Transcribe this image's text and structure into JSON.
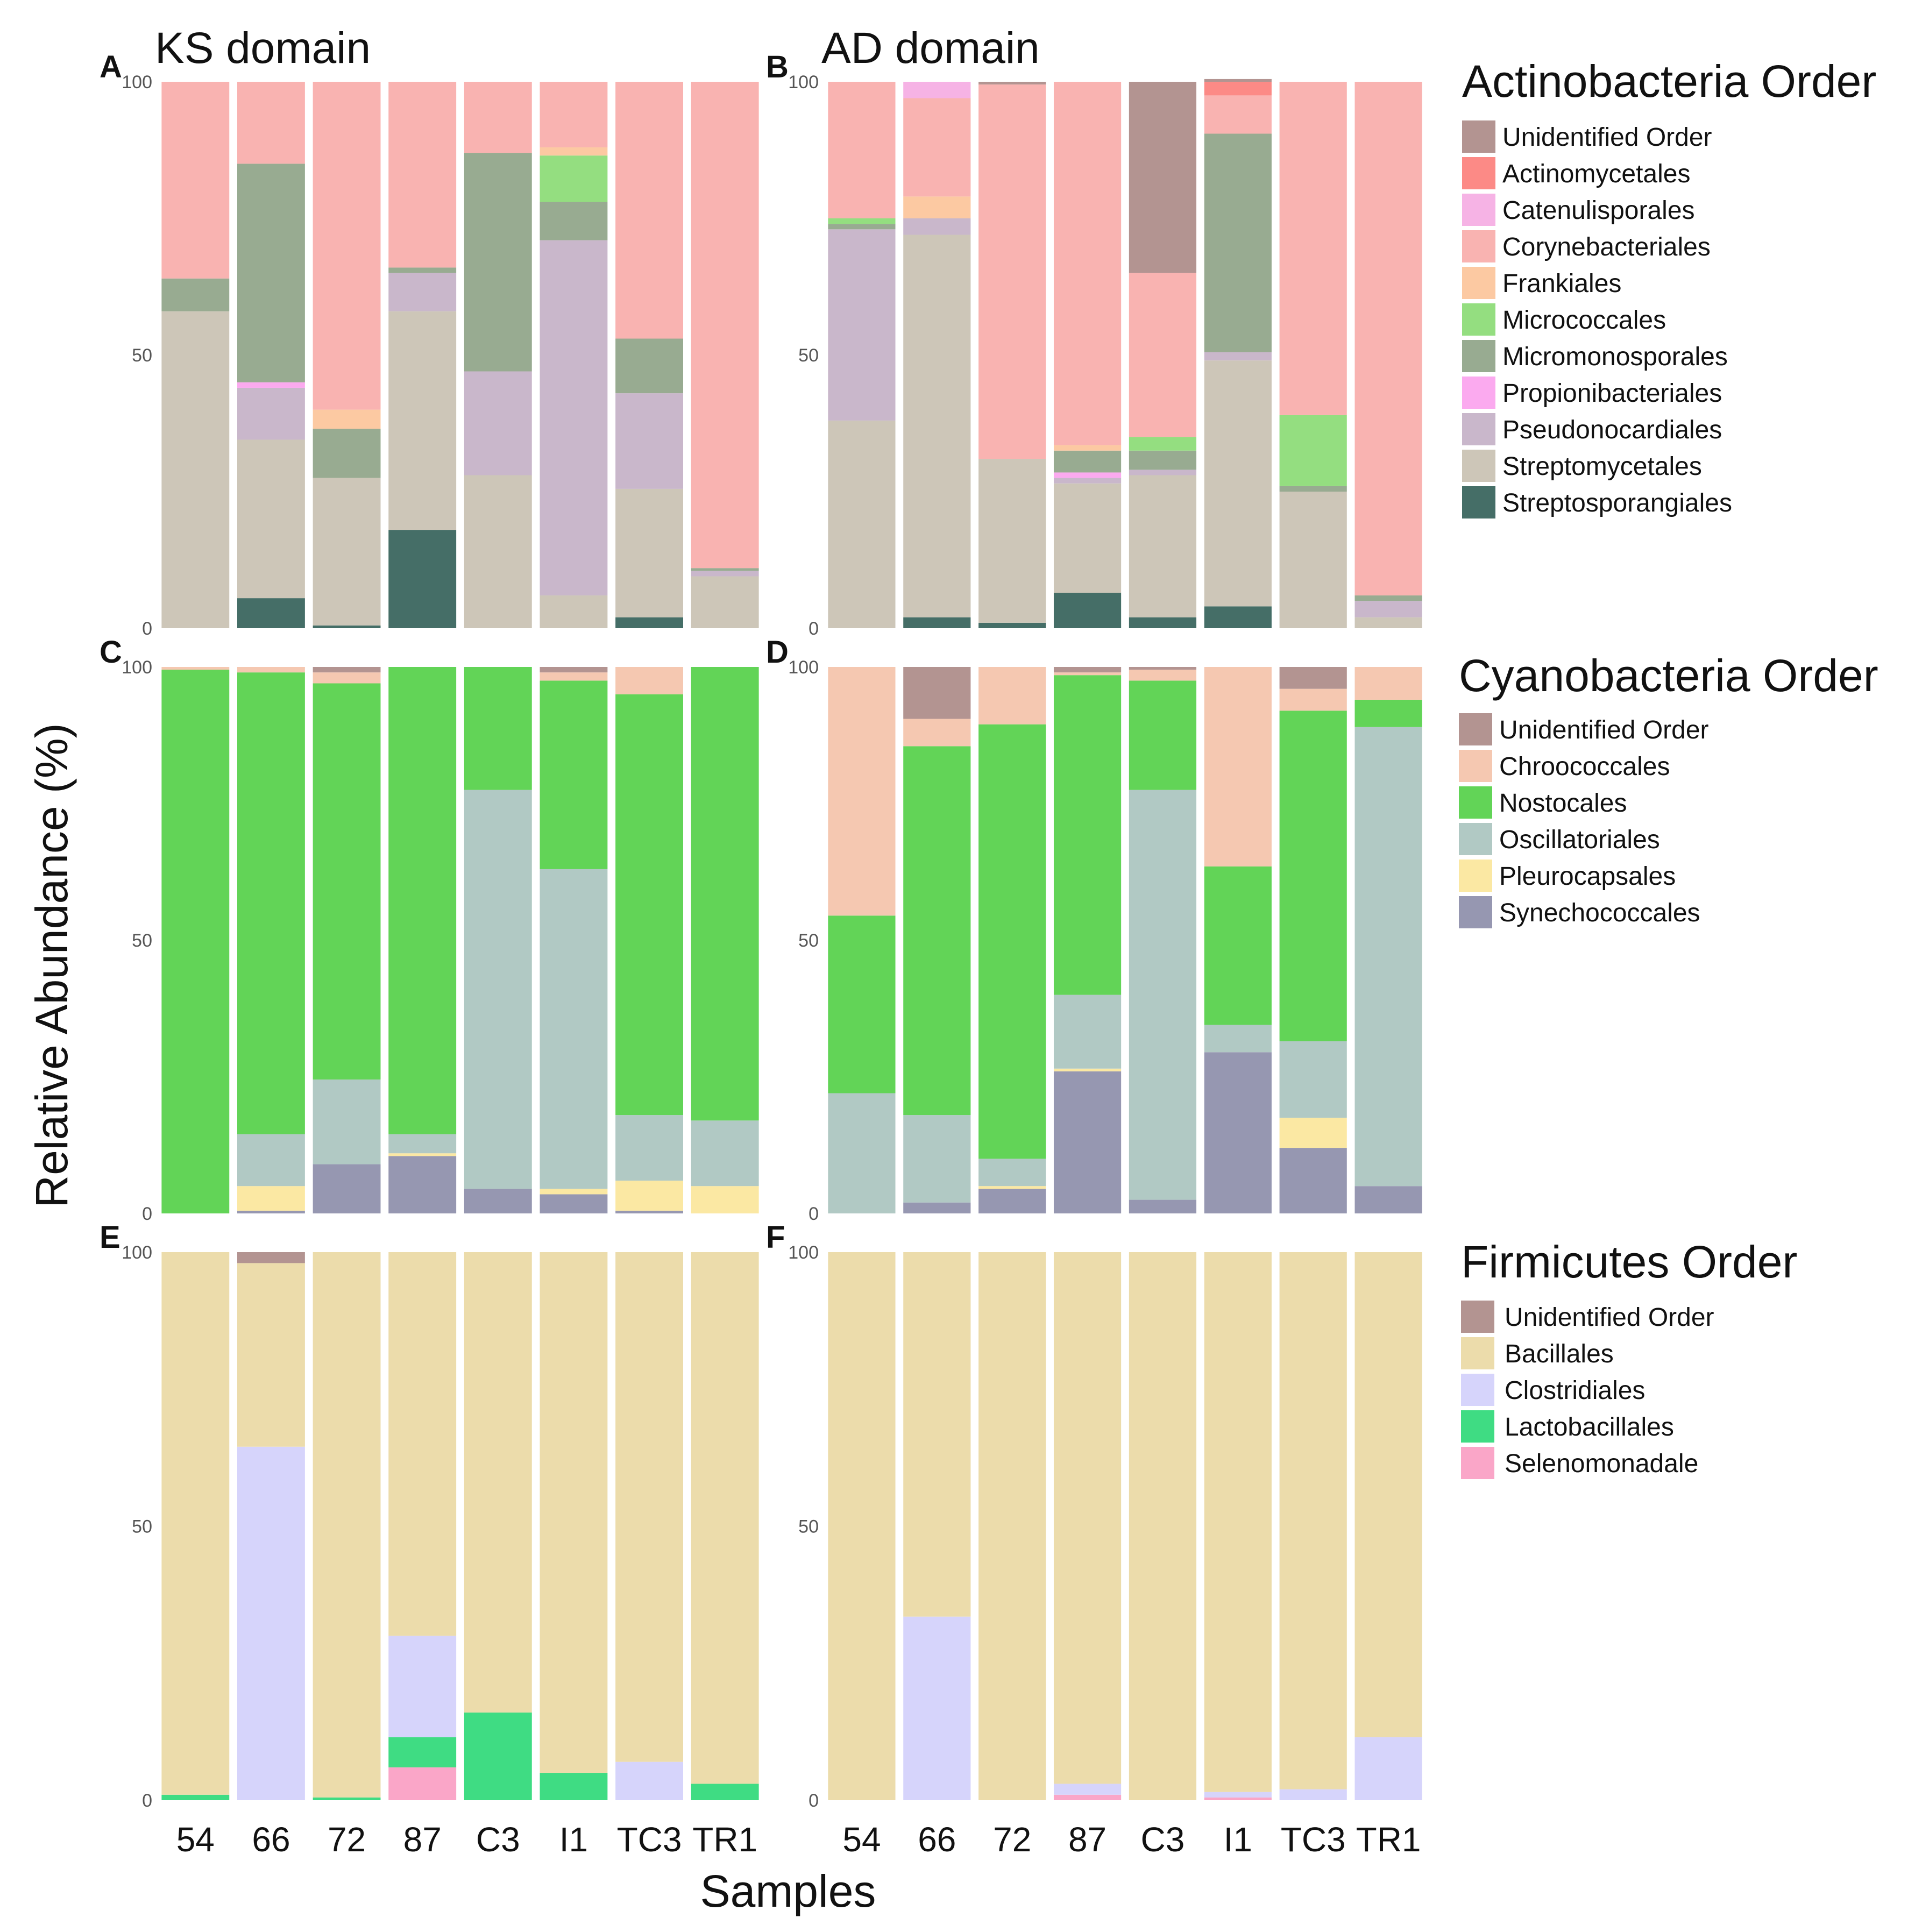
{
  "figure": {
    "ylabel": "Relative Abundance (%)",
    "xlabel": "Samples"
  },
  "colors": {
    "Unidentified Order": "#b39491",
    "Actinomycetales": "#fc8a86",
    "Catenulisporales": "#f6b3e5",
    "Corynebacteriales": "#f9b3b1",
    "Frankiales": "#fcc9a2",
    "Micrococcales": "#94de80",
    "Micromonosporales": "#98ab91",
    "Propionibacteriales": "#fbaaef",
    "Pseudonocardiales": "#c9b7cb",
    "Streptomycetales": "#cdc6b8",
    "Streptosporangiales": "#456e67",
    "Chroococcales": "#f5c8b1",
    "Nostocales": "#62d457",
    "Oscillatoriales": "#b1c9c4",
    "Pleurocapsales": "#fbe8a3",
    "Synechococcales": "#9697b1",
    "Bacillales": "#ecdcab",
    "Clostridiales": "#d6d4fb",
    "Lactobacillales": "#3fdc83",
    "Selenomonadale": "#faa6c8"
  },
  "legends": [
    {
      "title": "Actinobacteria Order",
      "items": [
        "Unidentified Order",
        "Actinomycetales",
        "Catenulisporales",
        "Corynebacteriales",
        "Frankiales",
        "Micrococcales",
        "Micromonosporales",
        "Propionibacteriales",
        "Pseudonocardiales",
        "Streptomycetales",
        "Streptosporangiales"
      ]
    },
    {
      "title": "Cyanobacteria Order",
      "items": [
        "Unidentified Order",
        "Chroococcales",
        "Nostocales",
        "Oscillatoriales",
        "Pleurocapsales",
        "Synechococcales"
      ]
    },
    {
      "title": "Firmicutes Order",
      "items": [
        "Unidentified Order",
        "Bacillales",
        "Clostridiales",
        "Lactobacillales",
        "Selenomonadale"
      ]
    }
  ],
  "chart_data": [
    {
      "type": "bar",
      "stacked": true,
      "panel": "A",
      "title": "KS domain",
      "categories": [
        "54",
        "66",
        "72",
        "87",
        "C3",
        "I1",
        "TC3",
        "TR1"
      ],
      "ylim": [
        0,
        100
      ],
      "yticks": [
        0,
        50,
        100
      ],
      "series": [
        {
          "name": "Streptosporangiales",
          "values": [
            0,
            5.5,
            0.5,
            18,
            0,
            0,
            2,
            0
          ]
        },
        {
          "name": "Streptomycetales",
          "values": [
            58,
            29,
            27,
            40,
            28,
            6,
            23.5,
            9.5
          ]
        },
        {
          "name": "Pseudonocardiales",
          "values": [
            0,
            9.5,
            0,
            7,
            19,
            65,
            17.5,
            1
          ]
        },
        {
          "name": "Propionibacteriales",
          "values": [
            0,
            1,
            0,
            0,
            0,
            0,
            0,
            0
          ]
        },
        {
          "name": "Micromonosporales",
          "values": [
            6,
            40,
            9,
            1,
            40,
            7,
            10,
            0.5
          ]
        },
        {
          "name": "Micrococcales",
          "values": [
            0,
            0,
            0,
            0,
            0,
            8.5,
            0,
            0
          ]
        },
        {
          "name": "Frankiales",
          "values": [
            0,
            0,
            3.5,
            0,
            0,
            1.5,
            0,
            0
          ]
        },
        {
          "name": "Corynebacteriales",
          "values": [
            36,
            15,
            60,
            34,
            13,
            12,
            47,
            89
          ]
        }
      ]
    },
    {
      "type": "bar",
      "stacked": true,
      "panel": "B",
      "title": "AD domain",
      "categories": [
        "54",
        "66",
        "72",
        "87",
        "C3",
        "I1",
        "TC3",
        "TR1"
      ],
      "ylim": [
        0,
        100
      ],
      "yticks": [
        0,
        50,
        100
      ],
      "series": [
        {
          "name": "Streptosporangiales",
          "values": [
            0,
            2,
            1,
            6.5,
            2,
            4,
            0,
            0
          ]
        },
        {
          "name": "Streptomycetales",
          "values": [
            38,
            70,
            30,
            20,
            26,
            45,
            25,
            2
          ]
        },
        {
          "name": "Pseudonocardiales",
          "values": [
            35,
            3,
            0,
            1,
            1,
            1.5,
            0,
            3
          ]
        },
        {
          "name": "Propionibacteriales",
          "values": [
            0,
            0,
            0,
            1,
            0,
            0,
            0,
            0
          ]
        },
        {
          "name": "Micromonosporales",
          "values": [
            1,
            0,
            0,
            4,
            3.5,
            40,
            1,
            1
          ]
        },
        {
          "name": "Micrococcales",
          "values": [
            1,
            0,
            0,
            0,
            2.5,
            0,
            13,
            0
          ]
        },
        {
          "name": "Frankiales",
          "values": [
            0,
            4,
            0,
            1,
            0,
            0,
            0,
            0
          ]
        },
        {
          "name": "Corynebacteriales",
          "values": [
            25,
            18,
            68.5,
            66.5,
            30,
            7,
            61,
            94
          ]
        },
        {
          "name": "Catenulisporales",
          "values": [
            0,
            3,
            0,
            0,
            0,
            0,
            0,
            0
          ]
        },
        {
          "name": "Actinomycetales",
          "values": [
            0,
            0,
            0,
            0,
            0,
            2.5,
            0,
            0
          ]
        },
        {
          "name": "Unidentified Order",
          "values": [
            0,
            0,
            0.5,
            0,
            35,
            0.5,
            0,
            0
          ]
        }
      ]
    },
    {
      "type": "bar",
      "stacked": true,
      "panel": "C",
      "title": "",
      "categories": [
        "54",
        "66",
        "72",
        "87",
        "C3",
        "I1",
        "TC3",
        "TR1"
      ],
      "ylim": [
        0,
        100
      ],
      "yticks": [
        0,
        50,
        100
      ],
      "series": [
        {
          "name": "Synechococcales",
          "values": [
            0,
            0.5,
            9,
            10.5,
            4.5,
            3.5,
            0.5,
            0
          ]
        },
        {
          "name": "Pleurocapsales",
          "values": [
            0,
            4.5,
            0,
            0.5,
            0,
            1,
            5.5,
            5
          ]
        },
        {
          "name": "Oscillatoriales",
          "values": [
            0,
            9.5,
            15.5,
            3.5,
            73,
            58.5,
            12,
            12
          ]
        },
        {
          "name": "Nostocales",
          "values": [
            99.5,
            84.5,
            72.5,
            85.5,
            22.5,
            34.5,
            77,
            83
          ]
        },
        {
          "name": "Chroococcales",
          "values": [
            0.5,
            1,
            2,
            0,
            0,
            1.5,
            5,
            0
          ]
        },
        {
          "name": "Unidentified Order",
          "values": [
            0,
            0,
            1,
            0,
            0,
            1,
            0,
            0
          ]
        }
      ]
    },
    {
      "type": "bar",
      "stacked": true,
      "panel": "D",
      "title": "",
      "categories": [
        "54",
        "66",
        "72",
        "87",
        "C3",
        "I1",
        "TC3",
        "TR1"
      ],
      "ylim": [
        0,
        100
      ],
      "yticks": [
        0,
        50,
        100
      ],
      "series": [
        {
          "name": "Synechococcales",
          "values": [
            0,
            2,
            4.5,
            26,
            2.5,
            29.5,
            12,
            5
          ]
        },
        {
          "name": "Pleurocapsales",
          "values": [
            0,
            0,
            0.5,
            0.5,
            0,
            0,
            5.5,
            0
          ]
        },
        {
          "name": "Oscillatoriales",
          "values": [
            22,
            16,
            5,
            13.5,
            75,
            5,
            14,
            84
          ]
        },
        {
          "name": "Nostocales",
          "values": [
            32.5,
            67.5,
            79.5,
            58.5,
            20,
            29,
            60.5,
            5
          ]
        },
        {
          "name": "Chroococcales",
          "values": [
            45.5,
            5,
            10.5,
            0.5,
            2,
            36.5,
            4,
            6
          ]
        },
        {
          "name": "Unidentified Order",
          "values": [
            0,
            9.5,
            0,
            1,
            0.5,
            0,
            4,
            0
          ]
        }
      ]
    },
    {
      "type": "bar",
      "stacked": true,
      "panel": "E",
      "title": "",
      "categories": [
        "54",
        "66",
        "72",
        "87",
        "C3",
        "I1",
        "TC3",
        "TR1"
      ],
      "ylim": [
        0,
        100
      ],
      "yticks": [
        0,
        50,
        100
      ],
      "series": [
        {
          "name": "Selenomonadale",
          "values": [
            0,
            0,
            0,
            6,
            0,
            0,
            0,
            0
          ]
        },
        {
          "name": "Lactobacillales",
          "values": [
            1,
            0,
            0.5,
            5.5,
            16,
            5,
            0,
            3
          ]
        },
        {
          "name": "Clostridiales",
          "values": [
            0,
            64.5,
            0,
            18.5,
            0,
            0,
            7,
            0
          ]
        },
        {
          "name": "Bacillales",
          "values": [
            99,
            33.5,
            99.5,
            70,
            84,
            95,
            93,
            97
          ]
        },
        {
          "name": "Unidentified Order",
          "values": [
            0,
            2,
            0,
            0,
            0,
            0,
            0,
            0
          ]
        }
      ]
    },
    {
      "type": "bar",
      "stacked": true,
      "panel": "F",
      "title": "",
      "categories": [
        "54",
        "66",
        "72",
        "87",
        "C3",
        "I1",
        "TC3",
        "TR1"
      ],
      "ylim": [
        0,
        100
      ],
      "yticks": [
        0,
        50,
        100
      ],
      "series": [
        {
          "name": "Selenomonadale",
          "values": [
            0,
            0,
            0,
            1,
            0,
            0.5,
            0,
            0
          ]
        },
        {
          "name": "Lactobacillales",
          "values": [
            0,
            0,
            0,
            0,
            0,
            0,
            0,
            0
          ]
        },
        {
          "name": "Clostridiales",
          "values": [
            0,
            33.5,
            0,
            2,
            0,
            1,
            2,
            11.5
          ]
        },
        {
          "name": "Bacillales",
          "values": [
            100,
            66.5,
            100,
            97,
            100,
            98.5,
            98,
            88.5
          ]
        }
      ]
    }
  ]
}
